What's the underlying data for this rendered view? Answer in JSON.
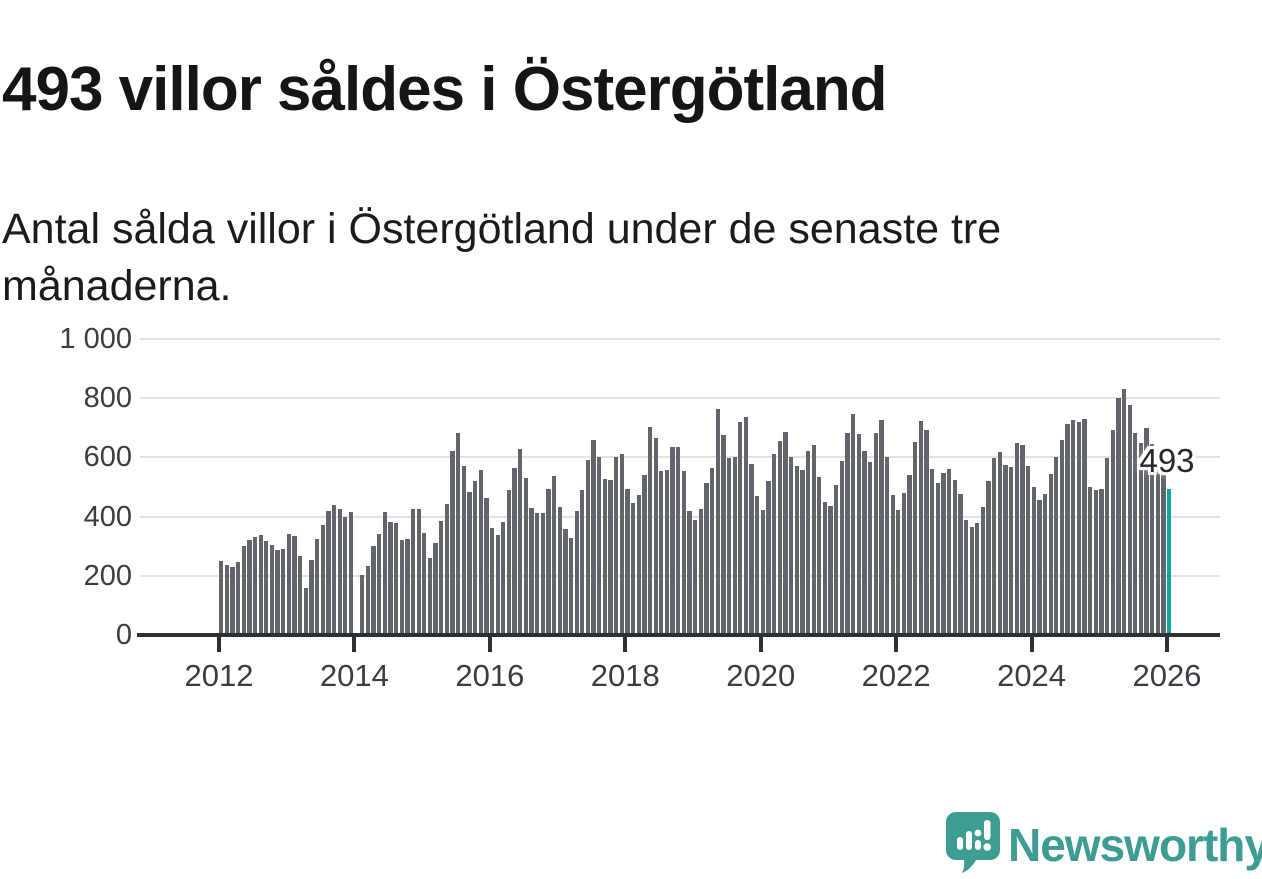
{
  "header": {
    "title": "493 villor såldes i Östergötland",
    "subtitle": "Antal sålda villor i Östergötland under de senaste tre månaderna."
  },
  "chart_data": {
    "type": "bar",
    "title": "493 villor såldes i Östergötland",
    "subtitle": "Antal sålda villor i Östergötland under de senaste tre månaderna.",
    "unit": "antal sålda villor (rullande 3 månader)",
    "x_start": "2012-01",
    "x_end": "2026-01",
    "x_interval": "month",
    "x_tick_labels": [
      "2012",
      "2014",
      "2016",
      "2018",
      "2020",
      "2022",
      "2024",
      "2026"
    ],
    "y_ticks": [
      0,
      200,
      400,
      600,
      800,
      1000
    ],
    "y_tick_labels": [
      "0",
      "200",
      "400",
      "600",
      "800",
      "1 000"
    ],
    "ylim": [
      0,
      1000
    ],
    "grid": "horizontal",
    "legend": "none",
    "values": [
      250,
      238,
      230,
      245,
      300,
      322,
      332,
      338,
      316,
      304,
      286,
      290,
      340,
      336,
      268,
      160,
      252,
      325,
      372,
      420,
      440,
      424,
      400,
      415,
      null,
      203,
      234,
      300,
      340,
      417,
      383,
      379,
      320,
      326,
      425,
      425,
      343,
      260,
      311,
      386,
      443,
      623,
      684,
      572,
      482,
      520,
      558,
      464,
      362,
      337,
      383,
      489,
      564,
      628,
      530,
      430,
      413,
      411,
      494,
      536,
      433,
      358,
      328,
      420,
      489,
      592,
      658,
      600,
      528,
      522,
      602,
      611,
      494,
      447,
      472,
      539,
      702,
      664,
      553,
      558,
      635,
      635,
      553,
      420,
      390,
      425,
      513,
      565,
      765,
      675,
      597,
      600,
      720,
      735,
      577,
      470,
      422,
      520,
      613,
      656,
      687,
      602,
      572,
      556,
      620,
      642,
      533,
      450,
      436,
      506,
      589,
      683,
      747,
      678,
      620,
      583,
      683,
      728,
      602,
      474,
      422,
      480,
      539,
      653,
      724,
      691,
      561,
      513,
      547,
      561,
      525,
      478,
      389,
      364,
      378,
      433,
      520,
      598,
      617,
      576,
      567,
      647,
      642,
      572,
      500,
      455,
      475,
      545,
      600,
      660,
      714,
      725,
      718,
      730,
      500,
      491,
      494,
      598,
      692,
      800,
      830,
      778,
      684,
      650,
      700,
      645,
      618,
      545,
      493
    ],
    "highlight_last": true,
    "annotation": {
      "label": "493",
      "value": 493
    },
    "colors": {
      "bar": "#63656d",
      "highlight": "#0fa2a2",
      "grid": "#e3e3e3",
      "axis": "#2d3036",
      "tick_text": "#3a3d42"
    }
  },
  "footer": {
    "brand": "Newsworthy",
    "brand_color": "#3e9d93",
    "logo": "newsworthy-speech-bubble-chart-icon"
  }
}
